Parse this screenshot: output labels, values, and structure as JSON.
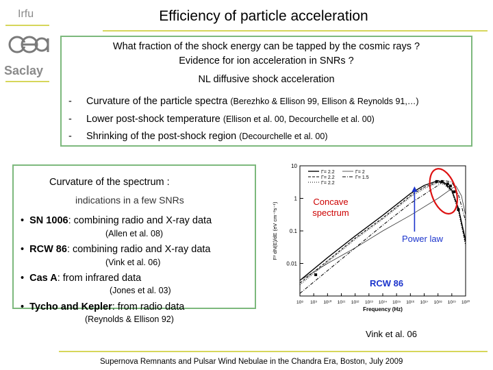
{
  "logo": {
    "irfu": "Irfu",
    "saclay": "Saclay"
  },
  "title": "Efficiency of particle acceleration",
  "top_box": {
    "question": "What fraction of the shock energy can be tapped by the cosmic rays ?",
    "evidence": "Evidence for ion acceleration in SNRs ?",
    "heading": "NL diffusive shock acceleration",
    "items": [
      {
        "dash": "-",
        "text": "Curvature of the particle spectra ",
        "ref": "(Berezhko & Ellison 99, Ellison & Reynolds 91,…)"
      },
      {
        "dash": "-",
        "text": "Lower post-shock temperature ",
        "ref": "(Ellison et al. 00, Decourchelle et al. 00)"
      },
      {
        "dash": "-",
        "text": "Shrinking of the post-shock region ",
        "ref": "(Decourchelle et al. 00)"
      }
    ]
  },
  "bottom_box": {
    "heading": "Curvature of the spectrum  :",
    "subheading": "indications in a few SNRs",
    "bullets": [
      {
        "marker": "•",
        "name": "SN 1006",
        "rest": ": combining radio and X-ray data",
        "cite": "(Allen et al. 08)"
      },
      {
        "marker": "•",
        "name": "RCW 86",
        "rest": ": combining radio and X-ray data",
        "cite": "(Vink et al. 06)"
      },
      {
        "marker": "•",
        "name": "Cas A",
        "rest": ": from infrared data",
        "cite": "(Jones et al. 03)"
      },
      {
        "marker": "•",
        "name": "Tycho and Kepler",
        "rest": ": from radio data",
        "cite": "(Reynolds & Ellison 92)"
      }
    ]
  },
  "annotations": {
    "concave": "Concave spectrum",
    "power_law": "Power law",
    "rcw86": "RCW 86",
    "vink": "Vink et al. 06"
  },
  "footer": "Supernova Remnants and Pulsar Wind Nebulae in the Chandra Era, Boston, July 2009",
  "chart_data": {
    "type": "line",
    "xlabel": "Frequency (Hz)",
    "ylabel": "F² dN(E)/dE (eV cm⁻²s⁻¹)",
    "x_scale": "log",
    "y_scale": "log",
    "xlim": [
      100000000.0,
      1e+20
    ],
    "ylim": [
      0.001,
      10
    ],
    "x_ticks": [
      "10⁸",
      "10⁹",
      "10¹⁰",
      "10¹¹",
      "10¹²",
      "10¹³",
      "10¹⁴",
      "10¹⁵",
      "10¹⁶",
      "10¹⁷",
      "10¹⁸",
      "10¹⁹",
      "10²⁰"
    ],
    "y_ticks": [
      "10",
      "1",
      "0.1",
      "0.01"
    ],
    "legend": [
      {
        "label": "Γ= 2.2",
        "style": "solid"
      },
      {
        "label": "Γ= 2.2",
        "style": "dashed"
      },
      {
        "label": "Γ= 2.2",
        "style": "dotted"
      },
      {
        "label": "Γ= 2",
        "style": "solid-thin"
      },
      {
        "label": "Γ= 1.5",
        "style": "dashdot"
      }
    ],
    "series": [
      {
        "style": "solid",
        "x": [
          100000000.0,
          10000000000.0,
          1000000000000.0,
          100000000000000.0,
          1e+16,
          1e+17,
          1e+18,
          3e+18,
          1e+19,
          3e+19,
          1e+20
        ],
        "y": [
          0.003,
          0.015,
          0.07,
          0.3,
          1.4,
          2.5,
          3.5,
          3.0,
          1.8,
          0.5,
          0.05
        ]
      },
      {
        "style": "dashed",
        "x": [
          100000000.0,
          10000000000.0,
          1000000000000.0,
          100000000000000.0,
          1e+16,
          1e+17,
          1e+18,
          3e+18,
          1e+19,
          3e+19,
          1e+20
        ],
        "y": [
          0.0025,
          0.012,
          0.06,
          0.25,
          1.2,
          2.2,
          3.2,
          2.8,
          1.7,
          0.45,
          0.04
        ]
      },
      {
        "style": "dotted",
        "x": [
          100000000.0,
          10000000000.0,
          1000000000000.0,
          100000000000000.0,
          1e+16,
          1e+17,
          1e+18,
          3e+18,
          1e+19,
          3e+19,
          1e+20
        ],
        "y": [
          0.0022,
          0.011,
          0.055,
          0.23,
          1.1,
          2.0,
          3.0,
          2.6,
          1.6,
          0.4,
          0.035
        ]
      },
      {
        "style": "solid-thin",
        "x": [
          100000000.0,
          10000000000.0,
          1000000000000.0,
          100000000000000.0,
          1e+16,
          1e+18,
          1e+19,
          2e+19,
          5e+19,
          1e+20
        ],
        "y": [
          0.003,
          0.01,
          0.03,
          0.1,
          0.3,
          1.0,
          2.0,
          2.4,
          1.2,
          0.3
        ]
      },
      {
        "style": "dashdot",
        "x": [
          100000000.0,
          10000000000.0,
          1000000000000.0,
          100000000000000.0,
          1e+16,
          1e+18,
          3e+18,
          1e+19,
          3e+19,
          1e+20
        ],
        "y": [
          0.0012,
          0.006,
          0.03,
          0.15,
          0.7,
          2.5,
          3.5,
          3.2,
          1.3,
          0.2
        ]
      }
    ],
    "points": [
      {
        "x": 1400000000.0,
        "y": 0.0045
      },
      {
        "x": 8e+17,
        "y": 3.3
      },
      {
        "x": 2e+18,
        "y": 3.3
      },
      {
        "x": 5e+18,
        "y": 2.8
      },
      {
        "x": 8e+18,
        "y": 2.4
      },
      {
        "x": 1.5e+19,
        "y": 1.6
      },
      {
        "x": 3e+19,
        "y": 0.45
      }
    ]
  }
}
